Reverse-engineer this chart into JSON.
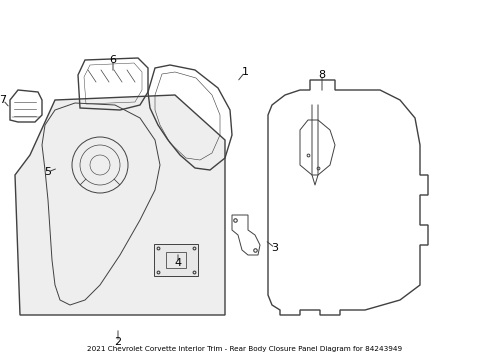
{
  "background_color": "#ffffff",
  "line_color": "#404040",
  "label_color": "#000000",
  "fig_width": 4.9,
  "fig_height": 3.6,
  "dpi": 100,
  "title": "2021 Chevrolet Corvette Interior Trim - Rear Body Closure Panel Diagram for 84243949",
  "title_fontsize": 5.2
}
